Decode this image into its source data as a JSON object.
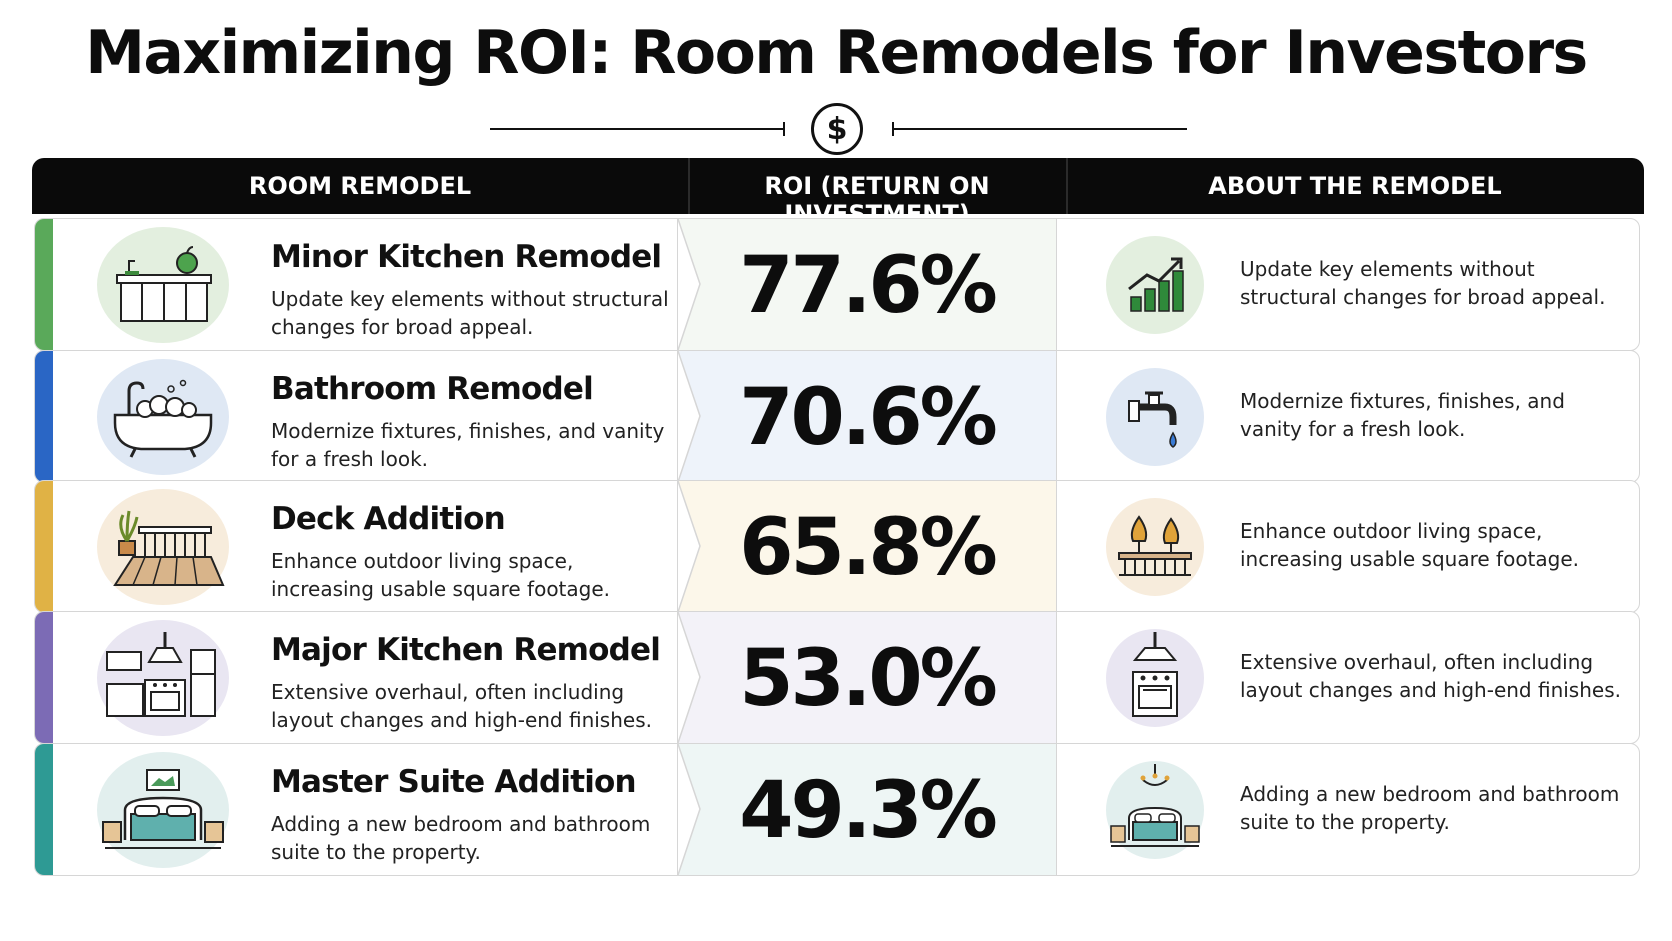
{
  "title": "Maximizing ROI: Room Remodels for Investors",
  "coin_symbol": "$",
  "columns": [
    "ROOM REMODEL",
    "ROI (RETURN ON INVESTMENT)",
    "ABOUT THE REMODEL"
  ],
  "rows": [
    {
      "name": "Minor Kitchen Remodel",
      "desc": "Update key elements without structural changes for broad appeal.",
      "roi": "77.6%",
      "about": "Update key elements without structural changes for broad appeal.",
      "accent": "#5aa95a",
      "tint": "#f4f8f3",
      "icon": "kitchen-cabinets-icon",
      "icon2": "growth-chart-icon"
    },
    {
      "name": "Bathroom Remodel",
      "desc": "Modernize fixtures, finishes, and vanity for a fresh look.",
      "roi": "70.6%",
      "about": "Modernize fixtures, finishes, and vanity for a fresh look.",
      "accent": "#2a66c5",
      "tint": "#eef3fa",
      "icon": "bathtub-icon",
      "icon2": "faucet-icon"
    },
    {
      "name": "Deck Addition",
      "desc": "Enhance outdoor living space, increasing usable square footage.",
      "roi": "65.8%",
      "about": "Enhance outdoor living space, increasing usable square footage.",
      "accent": "#e0b245",
      "tint": "#fcf7ea",
      "icon": "deck-icon",
      "icon2": "trees-fence-icon"
    },
    {
      "name": "Major Kitchen Remodel",
      "desc": "Extensive overhaul, often including layout changes and high-end finishes.",
      "roi": "53.0%",
      "about": "Extensive overhaul, often including layout changes and high-end finishes.",
      "accent": "#7c6bb5",
      "tint": "#f3f2f8",
      "icon": "full-kitchen-icon",
      "icon2": "stove-hood-icon"
    },
    {
      "name": "Master Suite Addition",
      "desc": "Adding a new bedroom and bathroom suite to the property.",
      "roi": "49.3%",
      "about": "Adding a new bedroom and bathroom suite to the property.",
      "accent": "#2e9a94",
      "tint": "#eef6f5",
      "icon": "bedroom-icon",
      "icon2": "bed-chandelier-icon"
    }
  ]
}
